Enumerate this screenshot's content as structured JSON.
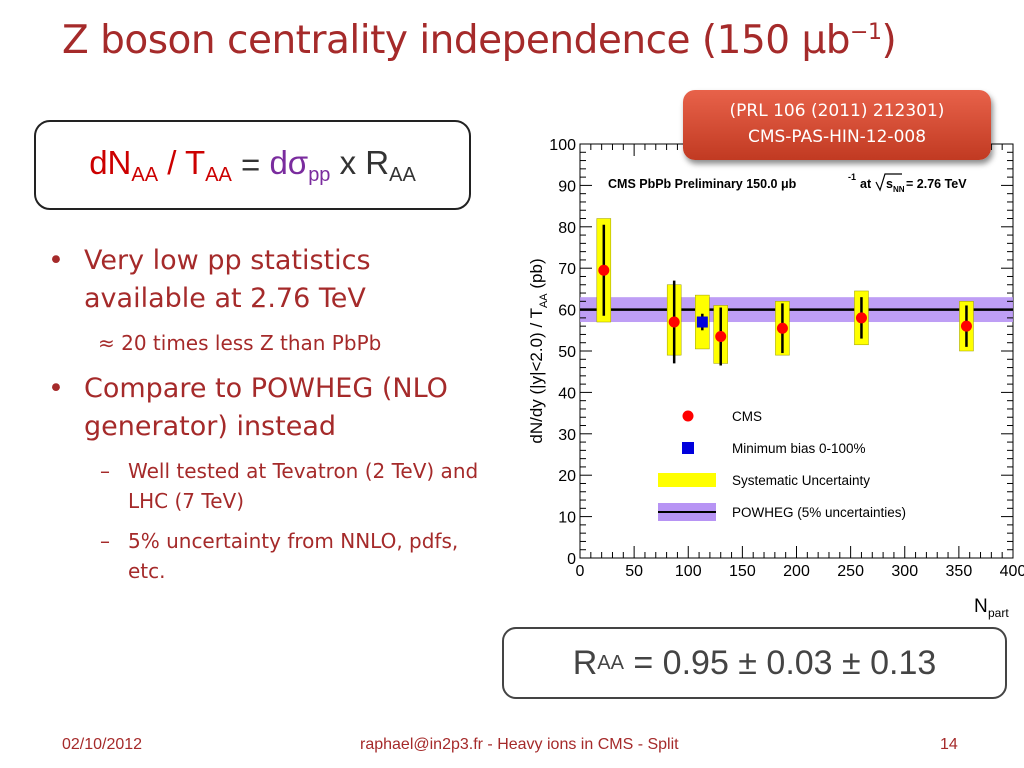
{
  "slide": {
    "title_main": "Z boson centrality independence (150 μb",
    "title_sup": "−1",
    "title_end": ")",
    "ref_line1": "(PRL 106 (2011) 212301)",
    "ref_line2": "CMS-PAS-HIN-12-008",
    "formula": {
      "dN": "dN",
      "dN_sub": "AA",
      "slash": " / T",
      "T_sub": "AA",
      "eq": " = ",
      "dsigma": "dσ",
      "dsigma_sub": "pp",
      "times": " x R",
      "R_sub": "AA"
    },
    "bullets": [
      {
        "text": "Very low pp statistics available at 2.76 TeV",
        "sub": "≈ 20 times less Z than PbPb"
      },
      {
        "text": "Compare to POWHEG (NLO generator) instead",
        "subs": [
          "Well tested at Tevatron (2 TeV) and LHC (7 TeV)",
          "5% uncertainty from NNLO, pdfs, etc."
        ]
      }
    ],
    "raa": {
      "R": "R",
      "sub": "AA",
      "value": " = 0.95 ± 0.03 ± 0.13"
    },
    "footer": {
      "date": "02/10/2012",
      "center": "raphael@in2p3.fr - Heavy ions in CMS - Split",
      "page": "14"
    }
  },
  "chart_data": {
    "type": "scatter",
    "header_text": "CMS PbPb Preliminary 150.0 μb",
    "header_sup": "-1",
    "header_at": "at",
    "header_sqrt": "s",
    "header_sqrt_sub": "NN",
    "header_energy": "= 2.76 TeV",
    "ylabel": "dN/dy (|y|<2.0) / T",
    "ylabel_sub": "AA",
    "ylabel_unit": "(pb)",
    "xlabel": "N",
    "xlabel_sub": "part",
    "xlim": [
      0,
      400
    ],
    "ylim": [
      0,
      100
    ],
    "xticks": [
      0,
      50,
      100,
      150,
      200,
      250,
      300,
      350,
      400
    ],
    "yticks": [
      0,
      10,
      20,
      30,
      40,
      50,
      60,
      70,
      80,
      90,
      100
    ],
    "series": [
      {
        "name": "CMS",
        "color": "#ff0000",
        "points": [
          {
            "x": 22,
            "y": 69.5,
            "stat": 11,
            "sys_lo": 57,
            "sys_hi": 82
          },
          {
            "x": 87,
            "y": 57,
            "stat": 10,
            "sys_lo": 49,
            "sys_hi": 66
          },
          {
            "x": 130,
            "y": 53.5,
            "stat": 7,
            "sys_lo": 47,
            "sys_hi": 61
          },
          {
            "x": 187,
            "y": 55.5,
            "stat": 6,
            "sys_lo": 49,
            "sys_hi": 62
          },
          {
            "x": 260,
            "y": 58,
            "stat": 5,
            "sys_lo": 51.5,
            "sys_hi": 64.5
          },
          {
            "x": 357,
            "y": 56,
            "stat": 5,
            "sys_lo": 50,
            "sys_hi": 62
          }
        ]
      },
      {
        "name": "Minimum bias 0-100%",
        "color": "#0000dd",
        "points": [
          {
            "x": 113,
            "y": 57,
            "stat": 2,
            "sys_lo": 50.5,
            "sys_hi": 63.5
          }
        ]
      }
    ],
    "powheg": {
      "value": 60,
      "band": [
        57,
        63
      ],
      "color": "#b794f4"
    },
    "legend": [
      {
        "label": "CMS",
        "kind": "dot-red"
      },
      {
        "label": "Minimum bias 0-100%",
        "kind": "square-blue"
      },
      {
        "label": "Systematic Uncertainty",
        "kind": "yellow-box"
      },
      {
        "label": "POWHEG (5% uncertainties)",
        "kind": "purple-band-line"
      }
    ],
    "sys_color": "#ffff00"
  }
}
